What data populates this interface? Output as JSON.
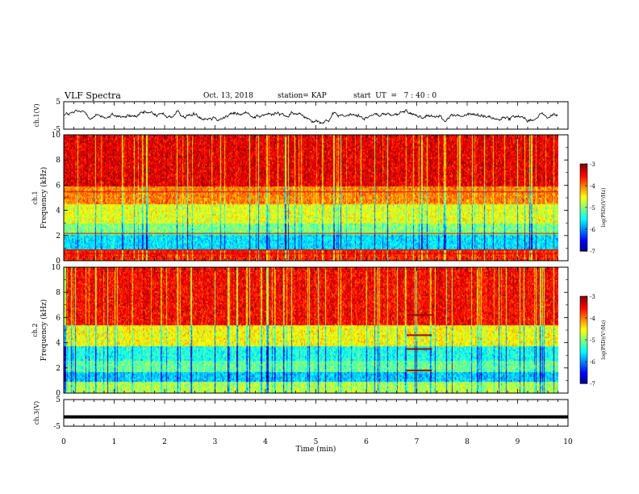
{
  "header": {
    "title": "VLF Spectra",
    "date": "Oct. 13, 2018",
    "station": "station= KAP",
    "start": "start  UT  =   7 : 40 : 0"
  },
  "chart_data": {
    "type": "heatmap",
    "x_axis": {
      "label": "Time  (min)",
      "range": [
        0,
        10
      ],
      "ticks": [
        "0",
        "1",
        "2",
        "3",
        "4",
        "5",
        "6",
        "7",
        "8",
        "9",
        "10"
      ]
    },
    "panels": [
      {
        "id": "ch1-waveform",
        "type": "line",
        "ylabel": "ch.1(V)",
        "ylim": [
          -5,
          5
        ],
        "yticks": [
          "5",
          "-5"
        ]
      },
      {
        "id": "ch1-spectrogram",
        "type": "heatmap",
        "ylabel_line1": "ch.1",
        "ylabel_line2": "Frequency  (kHz)",
        "ylim": [
          0,
          10
        ],
        "yticks": [
          "0",
          "2",
          "4",
          "6",
          "8",
          "10"
        ],
        "colorbar": {
          "label": "log(PSD)(V²/Hz)",
          "range": [
            -7,
            -3
          ],
          "ticks": [
            "-3",
            "-4",
            "-5",
            "-6",
            "-7"
          ]
        },
        "data_end_min": 9.8,
        "bands_kHz": [
          {
            "from": 0,
            "to": 1.0,
            "level": -3.6
          },
          {
            "from": 1.0,
            "to": 2.1,
            "level": -5.6
          },
          {
            "from": 2.1,
            "to": 3.0,
            "level": -5.0
          },
          {
            "from": 3.0,
            "to": 4.5,
            "level": -4.6
          },
          {
            "from": 4.5,
            "to": 6.0,
            "level": -4.0
          },
          {
            "from": 6.0,
            "to": 10.0,
            "level": -3.4
          }
        ],
        "lines_kHz": [
          0.6,
          0.9,
          2.2,
          5.5
        ]
      },
      {
        "id": "ch2-spectrogram",
        "type": "heatmap",
        "ylabel_line1": "ch.2",
        "ylabel_line2": "Frequency  (kHz)",
        "ylim": [
          0,
          10
        ],
        "yticks": [
          "0",
          "2",
          "4",
          "6",
          "8",
          "10"
        ],
        "colorbar": {
          "label": "log(PSD)(V²/Hz)",
          "range": [
            -7,
            -3
          ],
          "ticks": [
            "-3",
            "-4",
            "-5",
            "-6",
            "-7"
          ]
        },
        "data_end_min": 9.8,
        "bands_kHz": [
          {
            "from": 0,
            "to": 1.0,
            "level": -4.8
          },
          {
            "from": 1.0,
            "to": 1.7,
            "level": -5.7
          },
          {
            "from": 1.7,
            "to": 2.6,
            "level": -5.1
          },
          {
            "from": 2.6,
            "to": 3.8,
            "level": -5.4
          },
          {
            "from": 3.8,
            "to": 5.5,
            "level": -4.5
          },
          {
            "from": 5.5,
            "to": 10.0,
            "level": -3.5
          }
        ],
        "burst": {
          "t_from": 6.8,
          "t_to": 7.3,
          "freqs_kHz": [
            1.8,
            3.5,
            4.6,
            6.2
          ]
        }
      },
      {
        "id": "ch3-waveform",
        "type": "line",
        "ylabel": "ch.3(V)",
        "ylim": [
          -5,
          5
        ],
        "yticks": [
          "5",
          "-5"
        ],
        "constant_value": -1.5
      }
    ]
  }
}
